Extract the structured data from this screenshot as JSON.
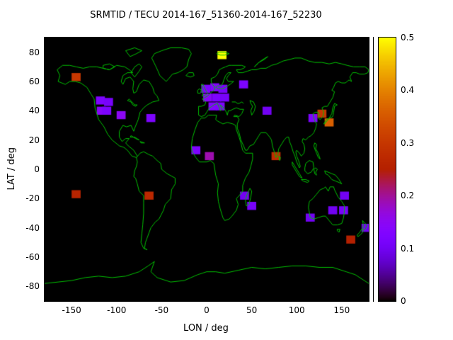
{
  "chart_data": {
    "type": "heatmap",
    "title": "SRMTID / TECU 2014-167_51360-2014-167_52230",
    "xlabel": "LON / deg",
    "ylabel": "LAT / deg",
    "xlim": [
      -180,
      180
    ],
    "ylim": [
      -90,
      90
    ],
    "xticks": [
      -150,
      -100,
      -50,
      0,
      50,
      100,
      150
    ],
    "yticks": [
      -80,
      -60,
      -40,
      -20,
      0,
      20,
      40,
      60,
      80
    ],
    "grid": false,
    "legend": "none",
    "plot_background": "#000000",
    "coastline_color": "#00c000",
    "colorbar": {
      "min": 0,
      "max": 0.5,
      "position": "right",
      "tick_values": [
        0,
        0.1,
        0.2,
        0.3,
        0.4,
        0.5
      ],
      "tick_labels": [
        "0",
        "0.1",
        "0.2",
        "0.3",
        "0.4",
        "0.5"
      ],
      "palette": "gnuplot pm3d (black - violet - magenta - red - orange - yellow)",
      "stops": [
        {
          "value": 0.0,
          "color": "#000000"
        },
        {
          "value": 0.1,
          "color": "#7202f2"
        },
        {
          "value": 0.2,
          "color": "#a11096"
        },
        {
          "value": 0.25,
          "color": "#b42400"
        },
        {
          "value": 0.3,
          "color": "#c63700"
        },
        {
          "value": 0.4,
          "color": "#e48300"
        },
        {
          "value": 0.5,
          "color": "#ffff00"
        }
      ]
    },
    "cell_size_deg": {
      "lon": 10,
      "lat": 5.5
    },
    "points": [
      {
        "lon": -145,
        "lat": 63,
        "value": 0.3
      },
      {
        "lon": -118,
        "lat": 47,
        "value": 0.12
      },
      {
        "lon": -109,
        "lat": 46,
        "value": 0.11
      },
      {
        "lon": -117,
        "lat": 40,
        "value": 0.14
      },
      {
        "lon": -111,
        "lat": 40,
        "value": 0.12
      },
      {
        "lon": -95,
        "lat": 37,
        "value": 0.15
      },
      {
        "lon": -62,
        "lat": 35,
        "value": 0.12
      },
      {
        "lon": -145,
        "lat": -17,
        "value": 0.26
      },
      {
        "lon": -64,
        "lat": -18,
        "value": 0.27
      },
      {
        "lon": -12,
        "lat": 13,
        "value": 0.12
      },
      {
        "lon": 3,
        "lat": 9,
        "value": 0.19
      },
      {
        "lon": -1,
        "lat": 55,
        "value": 0.12
      },
      {
        "lon": 9,
        "lat": 56,
        "value": 0.13
      },
      {
        "lon": 18,
        "lat": 55,
        "value": 0.11
      },
      {
        "lon": 1,
        "lat": 49,
        "value": 0.14
      },
      {
        "lon": 11,
        "lat": 49,
        "value": 0.12
      },
      {
        "lon": 20,
        "lat": 49,
        "value": 0.11
      },
      {
        "lon": 7,
        "lat": 43,
        "value": 0.13
      },
      {
        "lon": 15,
        "lat": 43,
        "value": 0.12
      },
      {
        "lon": 17,
        "lat": 78,
        "value": 0.5
      },
      {
        "lon": 41,
        "lat": 58,
        "value": 0.12
      },
      {
        "lon": 67,
        "lat": 40,
        "value": 0.1
      },
      {
        "lon": 77,
        "lat": 9,
        "value": 0.28
      },
      {
        "lon": 42,
        "lat": -18,
        "value": 0.1
      },
      {
        "lon": 50,
        "lat": -25,
        "value": 0.11
      },
      {
        "lon": 115,
        "lat": -33,
        "value": 0.1
      },
      {
        "lon": 118,
        "lat": 35,
        "value": 0.12
      },
      {
        "lon": 128,
        "lat": 38,
        "value": 0.3
      },
      {
        "lon": 136,
        "lat": 32,
        "value": 0.36
      },
      {
        "lon": 140,
        "lat": -28,
        "value": 0.1
      },
      {
        "lon": 152,
        "lat": -28,
        "value": 0.11
      },
      {
        "lon": 153,
        "lat": -18,
        "value": 0.1
      },
      {
        "lon": 160,
        "lat": -48,
        "value": 0.25
      },
      {
        "lon": 177,
        "lat": -40,
        "value": 0.1
      }
    ]
  }
}
